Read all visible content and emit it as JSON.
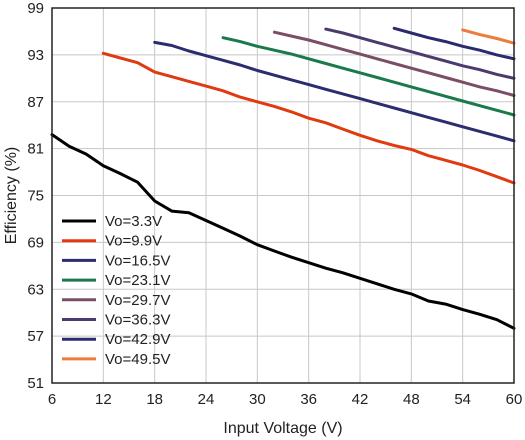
{
  "chart_data": {
    "type": "line",
    "xlabel": "Input Voltage (V)",
    "ylabel": "Efficiency (%)",
    "xlim": [
      6,
      60
    ],
    "ylim": [
      51,
      99
    ],
    "x_ticks": [
      6,
      12,
      18,
      24,
      30,
      36,
      42,
      48,
      54,
      60
    ],
    "y_ticks": [
      51,
      57,
      63,
      69,
      75,
      81,
      87,
      93,
      99
    ],
    "grid": true,
    "legend_position": "bottom-left",
    "series": [
      {
        "name": "Vo=3.3V",
        "color": "#000000",
        "x": [
          6,
          8,
          10,
          12,
          14,
          16,
          18,
          20,
          22,
          24,
          26,
          28,
          30,
          32,
          34,
          36,
          38,
          40,
          42,
          44,
          46,
          48,
          50,
          52,
          54,
          56,
          58,
          60
        ],
        "y": [
          82.8,
          81.3,
          80.3,
          78.8,
          77.8,
          76.7,
          74.3,
          73.0,
          72.8,
          71.8,
          70.8,
          69.8,
          68.7,
          67.9,
          67.1,
          66.4,
          65.7,
          65.1,
          64.4,
          63.7,
          63.0,
          62.4,
          61.5,
          61.1,
          60.4,
          59.8,
          59.1,
          58.0
        ]
      },
      {
        "name": "Vo=9.9V",
        "color": "#e03a10",
        "x": [
          12,
          14,
          16,
          18,
          20,
          22,
          24,
          26,
          28,
          30,
          32,
          34,
          36,
          38,
          40,
          42,
          44,
          46,
          48,
          50,
          52,
          54,
          56,
          58,
          60
        ],
        "y": [
          93.2,
          92.6,
          92.0,
          90.8,
          90.2,
          89.6,
          89.0,
          88.4,
          87.6,
          87.0,
          86.4,
          85.7,
          84.9,
          84.3,
          83.5,
          82.7,
          82.0,
          81.4,
          80.9,
          80.1,
          79.5,
          78.9,
          78.2,
          77.4,
          76.6
        ]
      },
      {
        "name": "Vo=16.5V",
        "color": "#2a2e6e",
        "x": [
          18,
          20,
          22,
          24,
          26,
          28,
          30,
          32,
          34,
          36,
          38,
          40,
          42,
          44,
          46,
          48,
          50,
          52,
          54,
          56,
          58,
          60
        ],
        "y": [
          94.6,
          94.2,
          93.5,
          92.9,
          92.3,
          91.7,
          91.0,
          90.4,
          89.8,
          89.2,
          88.6,
          88.0,
          87.4,
          86.8,
          86.2,
          85.6,
          85.0,
          84.4,
          83.8,
          83.2,
          82.6,
          82.0
        ]
      },
      {
        "name": "Vo=23.1V",
        "color": "#1a7a4a",
        "x": [
          26,
          28,
          30,
          32,
          34,
          36,
          38,
          40,
          42,
          44,
          46,
          48,
          50,
          52,
          54,
          56,
          58,
          60
        ],
        "y": [
          95.2,
          94.7,
          94.1,
          93.6,
          93.1,
          92.5,
          91.9,
          91.3,
          90.7,
          90.1,
          89.5,
          88.9,
          88.3,
          87.7,
          87.1,
          86.5,
          85.9,
          85.3
        ]
      },
      {
        "name": "Vo=29.7V",
        "color": "#7a4e64",
        "x": [
          32,
          34,
          36,
          38,
          40,
          42,
          44,
          46,
          48,
          50,
          52,
          54,
          56,
          58,
          60
        ],
        "y": [
          95.9,
          95.4,
          94.9,
          94.3,
          93.7,
          93.1,
          92.5,
          91.9,
          91.3,
          90.7,
          90.1,
          89.5,
          88.9,
          88.4,
          87.8
        ]
      },
      {
        "name": "Vo=36.3V",
        "color": "#4a3a6e",
        "x": [
          38,
          40,
          42,
          44,
          46,
          48,
          50,
          52,
          54,
          56,
          58,
          60
        ],
        "y": [
          96.3,
          95.8,
          95.2,
          94.6,
          94.0,
          93.4,
          92.8,
          92.2,
          91.6,
          91.1,
          90.5,
          90.0
        ]
      },
      {
        "name": "Vo=42.9V",
        "color": "#2a2a6e",
        "x": [
          46,
          48,
          50,
          52,
          54,
          56,
          58,
          60
        ],
        "y": [
          96.4,
          95.8,
          95.2,
          94.7,
          94.1,
          93.6,
          93.0,
          92.5
        ]
      },
      {
        "name": "Vo=49.5V",
        "color": "#f07a3a",
        "x": [
          54,
          56,
          58,
          60
        ],
        "y": [
          96.2,
          95.6,
          95.1,
          94.5
        ]
      }
    ]
  }
}
